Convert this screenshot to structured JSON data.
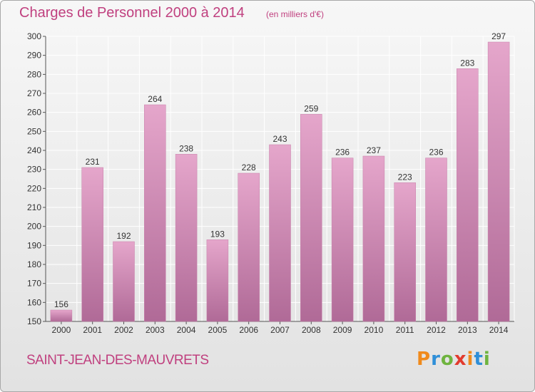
{
  "header": {
    "title": "Charges de Personnel 2000 à 2014",
    "subtitle": "(en milliers d'€)"
  },
  "footer": {
    "commune": "SAINT-JEAN-DES-MAUVRETS",
    "brand": "Proxiti",
    "brand_letters": [
      {
        "ch": "P",
        "color": "#f08a1c"
      },
      {
        "ch": "r",
        "color": "#2f8fd8"
      },
      {
        "ch": "o",
        "color": "#6fb43f"
      },
      {
        "ch": "x",
        "color": "#e23b2e"
      },
      {
        "ch": "i",
        "color": "#f08a1c"
      },
      {
        "ch": "t",
        "color": "#2f8fd8"
      },
      {
        "ch": "i",
        "color": "#6fb43f"
      }
    ]
  },
  "colors": {
    "accent": "#c0407f",
    "bar_top": "#e5a6cb",
    "bar_bottom": "#b06a97",
    "grid": "#ffffff"
  },
  "chart_data": {
    "type": "bar",
    "title": "Charges de Personnel 2000 à 2014",
    "subtitle": "(en milliers d'€)",
    "categories": [
      "2000",
      "2001",
      "2002",
      "2003",
      "2004",
      "2005",
      "2006",
      "2007",
      "2008",
      "2009",
      "2010",
      "2011",
      "2012",
      "2013",
      "2014"
    ],
    "values": [
      156,
      231,
      192,
      264,
      238,
      193,
      228,
      243,
      259,
      236,
      237,
      223,
      236,
      283,
      297
    ],
    "xlabel": "",
    "ylabel": "",
    "ylim": [
      150,
      300
    ],
    "yticks": [
      150,
      160,
      170,
      180,
      190,
      200,
      210,
      220,
      230,
      240,
      250,
      260,
      270,
      280,
      290,
      300
    ],
    "grid": true,
    "data_labels": true
  }
}
